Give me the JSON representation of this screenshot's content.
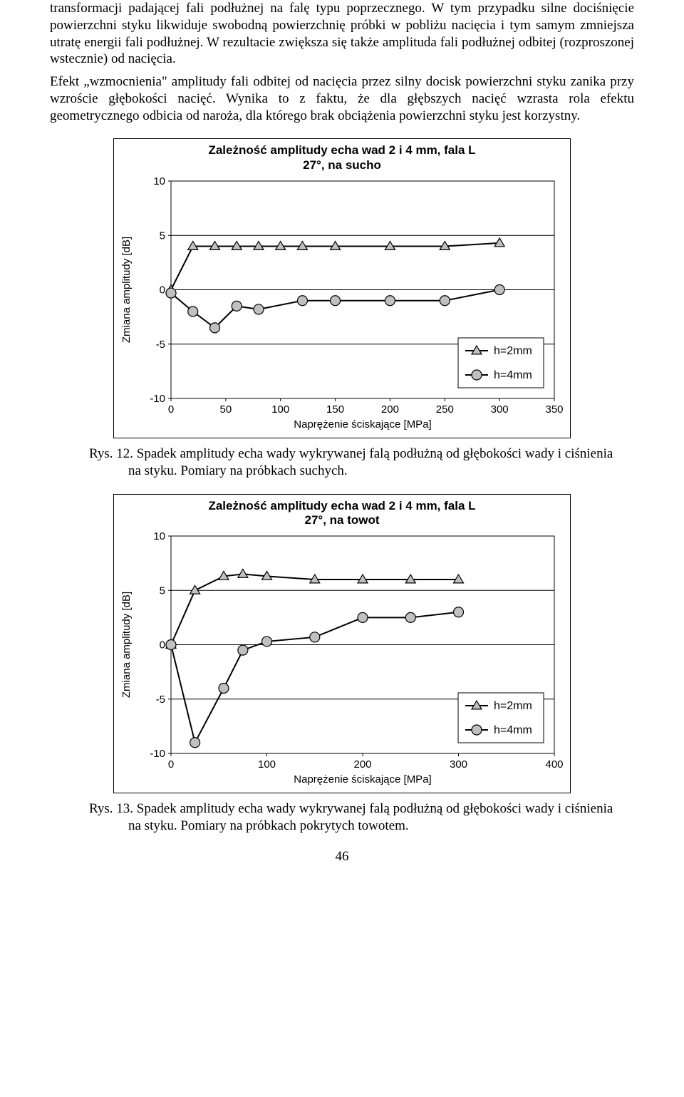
{
  "para1": "transformacji padającej fali podłużnej na falę typu poprzecznego. W tym przypadku silne dociśnięcie powierzchni styku likwiduje swobodną powierzchnię próbki w pobliżu nacięcia i tym samym zmniejsza utratę energii fali podłużnej. W rezultacie zwiększa się także amplituda fali podłużnej odbitej (rozproszonej wstecznie) od nacięcia.",
  "para2": "Efekt „wzmocnienia\" amplitudy fali odbitej od nacięcia przez silny docisk powierzchni styku zanika przy wzroście głębokości nacięć. Wynika to z faktu, że dla głębszych nacięć wzrasta rola efektu geometrycznego odbicia od naroża, dla którego brak obciążenia powierzchni styku jest korzystny.",
  "chart1": {
    "title_l1": "Zależność amplitudy echa wad 2 i 4 mm,  fala L",
    "title_l2": "27°,  na sucho",
    "ylabel": "Zmiana amplitudy [dB]",
    "xlabel": "Naprężenie ściskające [MPa]",
    "yticks": [
      -10,
      -5,
      0,
      5,
      10
    ],
    "xticks": [
      0,
      50,
      100,
      150,
      200,
      250,
      300,
      350
    ],
    "xlim": [
      0,
      350
    ],
    "ylim": [
      -10,
      10
    ],
    "series": [
      {
        "label": "h=2mm",
        "marker": "triangle",
        "color": "#808080",
        "x": [
          0,
          20,
          40,
          60,
          80,
          100,
          120,
          150,
          200,
          250,
          300
        ],
        "y": [
          0,
          4,
          4,
          4,
          4,
          4,
          4,
          4,
          4,
          4,
          4.3
        ]
      },
      {
        "label": "h=4mm",
        "marker": "circle",
        "color": "#808080",
        "x": [
          0,
          20,
          40,
          60,
          80,
          120,
          150,
          200,
          250,
          300
        ],
        "y": [
          -0.3,
          -2,
          -3.5,
          -1.5,
          -1.8,
          -1,
          -1,
          -1,
          -1,
          0
        ]
      }
    ],
    "marker_fill": "#c0c0c0",
    "marker_stroke": "#000",
    "line_w": 2,
    "hgrid_color": "#000",
    "plot_bg": "#fff"
  },
  "caption1": "Rys. 12. Spadek amplitudy echa wady wykrywanej falą podłużną od głębokości wady i ciśnienia na styku. Pomiary na próbkach suchych.",
  "chart2": {
    "title_l1": "Zależność amplitudy echa wad 2 i 4 mm,  fala L",
    "title_l2": "27°,  na towot",
    "ylabel": "Zmiana amplitudy [dB]",
    "xlabel": "Naprężenie ściskające [MPa]",
    "yticks": [
      -10,
      -5,
      0,
      5,
      10
    ],
    "xticks": [
      0,
      100,
      200,
      300,
      400
    ],
    "xlim": [
      0,
      400
    ],
    "ylim": [
      -10,
      10
    ],
    "series": [
      {
        "label": "h=2mm",
        "marker": "triangle",
        "color": "#808080",
        "x": [
          0,
          25,
          55,
          75,
          100,
          150,
          200,
          250,
          300
        ],
        "y": [
          0,
          5,
          6.3,
          6.5,
          6.3,
          6,
          6,
          6,
          6
        ]
      },
      {
        "label": "h=4mm",
        "marker": "circle",
        "color": "#808080",
        "x": [
          0,
          25,
          55,
          75,
          100,
          150,
          200,
          250,
          300
        ],
        "y": [
          0,
          -9,
          -4,
          -0.5,
          0.3,
          0.7,
          2.5,
          2.5,
          3
        ]
      }
    ],
    "marker_fill": "#c0c0c0",
    "marker_stroke": "#000",
    "line_w": 2,
    "hgrid_color": "#000",
    "plot_bg": "#fff"
  },
  "caption2": "Rys. 13. Spadek amplitudy echa wady wykrywanej falą podłużną od głębokości wady i ciśnienia na styku. Pomiary na próbkach pokrytych towotem.",
  "pagenum": "46"
}
